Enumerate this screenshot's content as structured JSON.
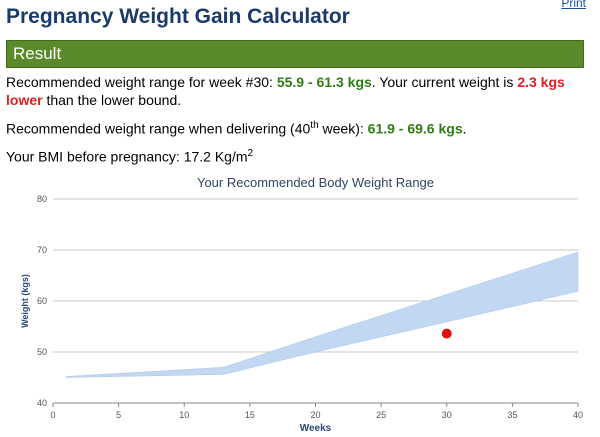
{
  "header": {
    "title": "Pregnancy Weight Gain Calculator",
    "print_label": "Print"
  },
  "result": {
    "heading": "Result",
    "line1_prefix": "Recommended weight range for week #30:",
    "line1_range": "55.9 - 61.3 kgs",
    "line1_mid": ". Your current weight is",
    "line1_diff": "2.3 kgs",
    "line1_lower": "lower",
    "line1_suffix": "than the lower bound.",
    "line2_prefix": "Recommended weight range when delivering (40",
    "line2_sup": "th",
    "line2_mid": "week):",
    "line2_range": "61.9 - 69.6 kgs",
    "line2_suffix": ".",
    "bmi_prefix": "Your BMI before pregnancy: 17.2 Kg/m",
    "bmi_sup": "2"
  },
  "chart_data": {
    "type": "area",
    "title": "Your Recommended Body Weight Range",
    "xlabel": "Weeks",
    "ylabel": "Weight (kgs)",
    "xlim": [
      0,
      40
    ],
    "ylim": [
      40,
      80
    ],
    "x_ticks": [
      0,
      5,
      10,
      15,
      20,
      25,
      30,
      35,
      40
    ],
    "y_ticks": [
      40,
      50,
      60,
      70,
      80
    ],
    "grid": "horizontal",
    "band": {
      "color": "#c2d7f2",
      "x": [
        1,
        13,
        20,
        30,
        40
      ],
      "lower": [
        45.0,
        45.6,
        50.0,
        55.9,
        61.9
      ],
      "upper": [
        45.2,
        47.0,
        53.0,
        61.3,
        69.6
      ]
    },
    "current_point": {
      "x": 30,
      "y": 53.6,
      "color": "#e01010"
    }
  },
  "colors": {
    "result_bar": "#5a8a2a",
    "title": "#1a3a6a",
    "range_green": "#2e7d14",
    "alert_red": "#e02020"
  }
}
